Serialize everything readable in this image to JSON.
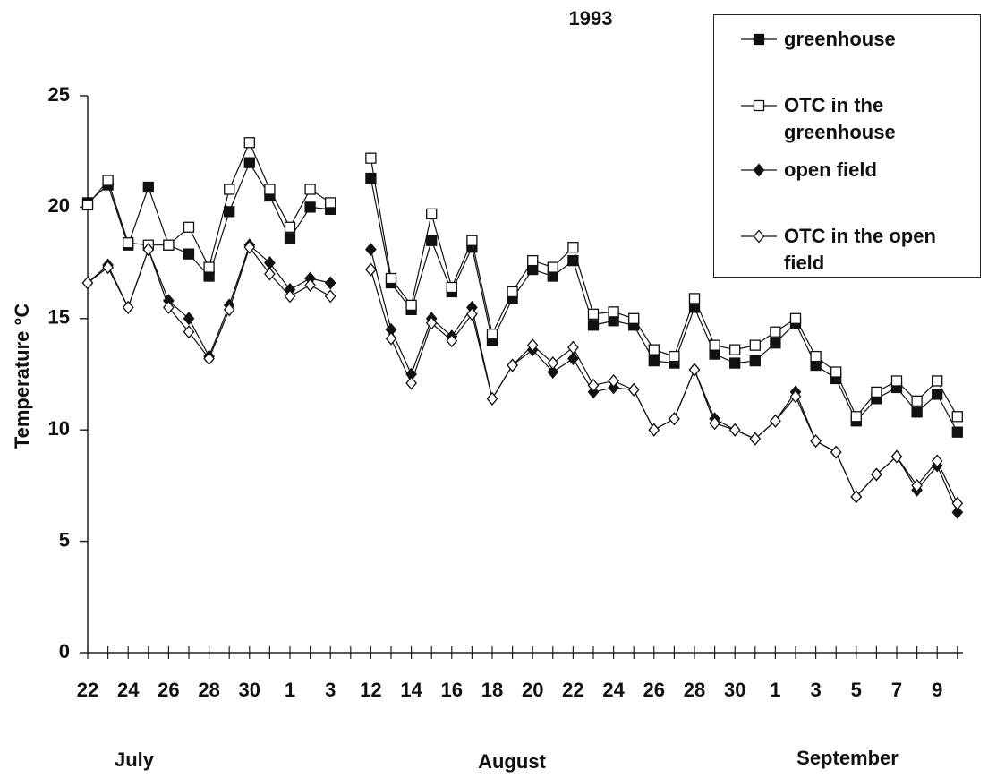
{
  "chart_data": {
    "type": "line",
    "title": "1993",
    "y_label": "Temperature °C",
    "months": [
      "July",
      "August",
      "September"
    ],
    "categories": [
      "22",
      null,
      "24",
      null,
      "26",
      null,
      "28",
      null,
      "30",
      null,
      "1",
      null,
      "3",
      null,
      "12",
      null,
      "14",
      null,
      "16",
      null,
      "18",
      null,
      "20",
      null,
      "22",
      null,
      "24",
      null,
      "26",
      null,
      "28",
      null,
      "30",
      null,
      "1",
      null,
      "3",
      null,
      "5",
      null,
      "7",
      null,
      "9",
      null
    ],
    "ylim": [
      0,
      25
    ],
    "yticks": [
      0,
      5,
      10,
      15,
      20,
      25
    ],
    "grid": false,
    "legend": "upper right",
    "series": [
      {
        "name": "greenhouse",
        "color": "#111111",
        "marker": "square",
        "filled": true,
        "values": [
          20.2,
          21.0,
          18.3,
          20.9,
          18.3,
          17.9,
          16.9,
          19.8,
          22.0,
          20.5,
          18.6,
          20.0,
          19.9,
          null,
          21.3,
          16.6,
          15.4,
          18.5,
          16.2,
          18.2,
          14.0,
          15.9,
          17.2,
          16.9,
          17.6,
          14.7,
          14.9,
          14.7,
          13.1,
          13.0,
          15.5,
          13.4,
          13.0,
          13.1,
          13.9,
          14.8,
          12.9,
          12.3,
          10.4,
          11.4,
          11.9,
          10.8,
          11.6,
          9.9
        ]
      },
      {
        "name": "OTC in the greenhouse",
        "color": "#111111",
        "marker": "square",
        "filled": false,
        "values": [
          20.1,
          21.2,
          18.4,
          18.3,
          18.3,
          19.1,
          17.3,
          20.8,
          22.9,
          20.8,
          19.1,
          20.8,
          20.2,
          null,
          22.2,
          16.8,
          15.6,
          19.7,
          16.4,
          18.5,
          14.3,
          16.2,
          17.6,
          17.3,
          18.2,
          15.2,
          15.3,
          15.0,
          13.6,
          13.3,
          15.9,
          13.8,
          13.6,
          13.8,
          14.4,
          15.0,
          13.3,
          12.6,
          10.6,
          11.7,
          12.2,
          11.3,
          12.2,
          10.6
        ]
      },
      {
        "name": "open field",
        "color": "#111111",
        "marker": "diamond",
        "filled": true,
        "values": [
          16.6,
          17.4,
          15.5,
          18.1,
          15.8,
          15.0,
          13.3,
          15.6,
          18.3,
          17.5,
          16.3,
          16.8,
          16.6,
          null,
          18.1,
          14.5,
          12.5,
          15.0,
          14.2,
          15.5,
          11.4,
          12.9,
          13.6,
          12.6,
          13.2,
          11.7,
          11.9,
          11.8,
          10.0,
          10.5,
          12.7,
          10.5,
          10.0,
          9.6,
          10.4,
          11.7,
          9.5,
          9.0,
          7.0,
          8.0,
          8.8,
          7.3,
          8.4,
          6.3
        ]
      },
      {
        "name": "OTC in the open field",
        "color": "#111111",
        "marker": "diamond",
        "filled": false,
        "values": [
          16.6,
          17.3,
          15.5,
          18.1,
          15.5,
          14.4,
          13.2,
          15.4,
          18.2,
          17.0,
          16.0,
          16.5,
          16.0,
          null,
          17.2,
          14.1,
          12.1,
          14.8,
          14.0,
          15.2,
          11.4,
          12.9,
          13.8,
          13.0,
          13.7,
          12.0,
          12.2,
          11.8,
          10.0,
          10.5,
          12.7,
          10.3,
          10.0,
          9.6,
          10.4,
          11.5,
          9.5,
          9.0,
          7.0,
          8.0,
          8.8,
          7.5,
          8.6,
          6.7
        ]
      }
    ]
  }
}
